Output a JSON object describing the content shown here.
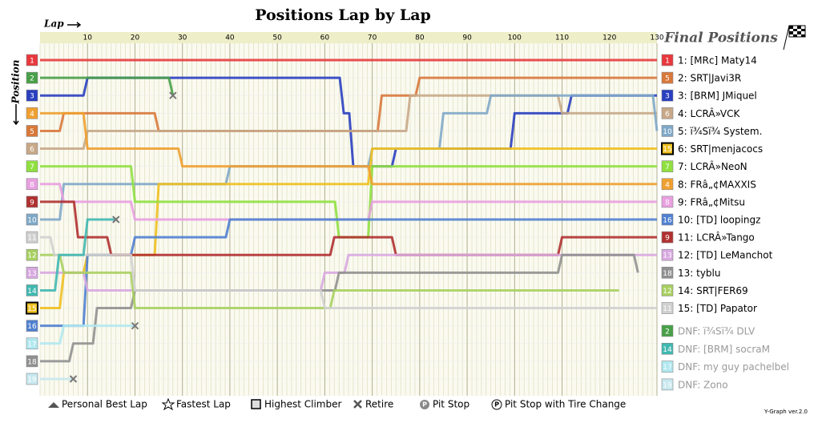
{
  "chart_data": {
    "type": "position-line",
    "title": "Positions Lap by Lap",
    "x_label": "Lap",
    "y_label": "Position",
    "legend_title": "Final Positions",
    "footer": "Y-Graph ver.2.0",
    "xlim": [
      0,
      130
    ],
    "xticks": [
      10,
      20,
      30,
      40,
      50,
      60,
      70,
      80,
      90,
      100,
      110,
      120,
      130
    ],
    "ylim": [
      1,
      19
    ],
    "legend_items": [
      "Personal Best Lap",
      "Fastest Lap",
      "Highest Climber",
      "Retire",
      "Pit Stop",
      "Pit Stop with Tire Change"
    ],
    "series": [
      {
        "name": "1: [MRc] Maty14",
        "color": "#e8383d",
        "start": 1,
        "x": [
          0,
          130
        ],
        "values": [
          1,
          1
        ]
      },
      {
        "name": "2: SRT|Javi3R",
        "color": "#d9783a",
        "start": 5,
        "x": [
          0,
          5,
          25,
          60,
          72,
          80,
          130
        ],
        "values": [
          5,
          4,
          5,
          5,
          3,
          2,
          2
        ]
      },
      {
        "name": "3: [BRM] JMiquel",
        "color": "#2a3fc0",
        "start": 3,
        "x": [
          0,
          10,
          30,
          64,
          66,
          75,
          100,
          112,
          130
        ],
        "values": [
          3,
          2,
          2,
          4,
          7,
          6,
          4,
          3,
          3
        ]
      },
      {
        "name": "4: LCRÂ»VCK",
        "color": "#c8a888",
        "start": 6,
        "x": [
          0,
          10,
          70,
          78,
          110,
          130
        ],
        "values": [
          6,
          5,
          5,
          3,
          4,
          4
        ]
      },
      {
        "name": "5: ï¾Sï¾ System.",
        "color": "#7fa8c8",
        "start": 10,
        "x": [
          0,
          5,
          40,
          70,
          85,
          95,
          130
        ],
        "values": [
          10,
          8,
          7,
          6,
          4,
          3,
          5
        ]
      },
      {
        "name": "6: SRT|menjacocs",
        "color": "#f0c020",
        "start": 15,
        "highlight": true,
        "x": [
          0,
          5,
          10,
          25,
          60,
          70,
          130
        ],
        "values": [
          15,
          13,
          12,
          8,
          8,
          6,
          6
        ]
      },
      {
        "name": "7: LCRÂ»NeoN",
        "color": "#90e040",
        "start": 7,
        "x": [
          0,
          20,
          40,
          63,
          70,
          130
        ],
        "values": [
          7,
          9,
          9,
          11,
          7,
          7
        ]
      },
      {
        "name": "8: FRâ„¢MAXXIS",
        "color": "#f0a030",
        "start": 4,
        "x": [
          0,
          10,
          30,
          62,
          70,
          130
        ],
        "values": [
          4,
          6,
          7,
          7,
          8,
          8
        ]
      },
      {
        "name": "9: FRâ„¢Mitsu",
        "color": "#e8a0e0",
        "start": 8,
        "x": [
          0,
          5,
          20,
          60,
          70,
          130
        ],
        "values": [
          8,
          9,
          10,
          10,
          9,
          9
        ]
      },
      {
        "name": "10: [TD] loopingz",
        "color": "#5080d0",
        "start": 16,
        "x": [
          0,
          10,
          20,
          40,
          65,
          130
        ],
        "values": [
          16,
          12,
          11,
          10,
          10,
          10
        ]
      },
      {
        "name": "11: LCRÂ»Tango",
        "color": "#b03030",
        "start": 9,
        "x": [
          0,
          8,
          15,
          62,
          75,
          110,
          130
        ],
        "values": [
          9,
          11,
          12,
          11,
          12,
          11,
          11
        ]
      },
      {
        "name": "12: [TD] LeManchot",
        "color": "#d8a8e0",
        "start": 13,
        "x": [
          0,
          10,
          60,
          65,
          80,
          130
        ],
        "values": [
          13,
          14,
          13,
          12,
          12,
          12
        ]
      },
      {
        "name": "13: tyblu",
        "color": "#909090",
        "start": 18,
        "x": [
          0,
          7,
          12,
          20,
          63,
          110,
          126
        ],
        "values": [
          18,
          17,
          15,
          14,
          13,
          12,
          13
        ]
      },
      {
        "name": "14: SRT|FER69",
        "color": "#a8d060",
        "start": 12,
        "x": [
          0,
          5,
          20,
          62,
          122
        ],
        "values": [
          12,
          13,
          15,
          14,
          14
        ]
      },
      {
        "name": "15: [TD] Papator",
        "color": "#d0d0d0",
        "start": 11,
        "x": [
          0,
          3,
          20,
          60,
          130
        ],
        "values": [
          11,
          12,
          14,
          15,
          15
        ]
      },
      {
        "name": "DNF: ï¾Sï¾ DLV",
        "color": "#48a048",
        "start": 2,
        "dnf": true,
        "x": [
          0,
          10,
          28
        ],
        "values": [
          2,
          2,
          3
        ]
      },
      {
        "name": "DNF: [BRM] socraM",
        "color": "#40b8b0",
        "start": 14,
        "dnf": true,
        "x": [
          0,
          4,
          10,
          16
        ],
        "values": [
          14,
          12,
          10,
          10
        ]
      },
      {
        "name": "DNF: my guy pachelbel",
        "color": "#b0e8f0",
        "start": 17,
        "dnf": true,
        "x": [
          0,
          5,
          20
        ],
        "values": [
          17,
          16,
          16
        ]
      },
      {
        "name": "DNF: Zono",
        "color": "#c8e8f0",
        "start": 19,
        "dnf": true,
        "x": [
          0,
          7
        ],
        "values": [
          19,
          19
        ]
      }
    ]
  }
}
